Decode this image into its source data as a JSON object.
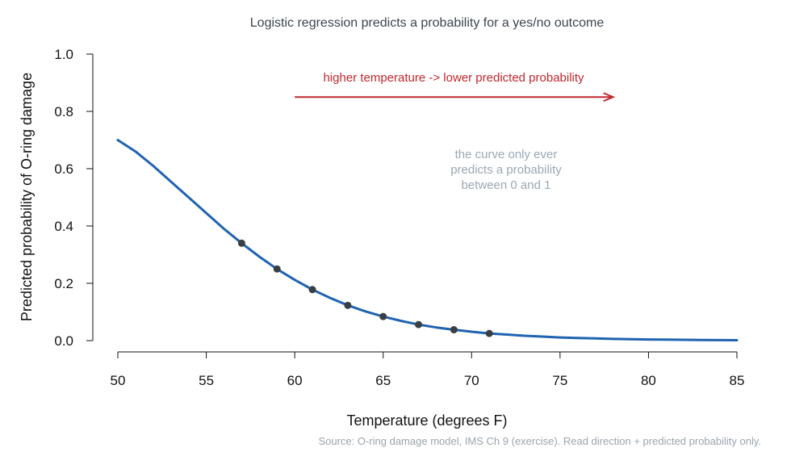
{
  "chart_data": {
    "type": "line",
    "title": "Logistic regression predicts a probability for a yes/no outcome",
    "xlabel": "Temperature (degrees F)",
    "ylabel": "Predicted probability of O-ring damage",
    "xlim": [
      50,
      85
    ],
    "ylim": [
      0,
      1
    ],
    "x_ticks": [
      50,
      55,
      60,
      65,
      70,
      75,
      80,
      85
    ],
    "y_ticks": [
      "0.0",
      "0.2",
      "0.4",
      "0.6",
      "0.8",
      "1.0"
    ],
    "curve": {
      "x": [
        50,
        51,
        52,
        53,
        54,
        55,
        56,
        57,
        58,
        59,
        60,
        61,
        62,
        63,
        64,
        65,
        66,
        67,
        68,
        69,
        70,
        71,
        72,
        73,
        74,
        75,
        76,
        77,
        78,
        79,
        80,
        81,
        82,
        83,
        84,
        85
      ],
      "y": [
        0.7,
        0.66,
        0.61,
        0.555,
        0.5,
        0.445,
        0.39,
        0.34,
        0.293,
        0.25,
        0.212,
        0.178,
        0.149,
        0.123,
        0.102,
        0.084,
        0.069,
        0.056,
        0.046,
        0.038,
        0.031,
        0.025,
        0.021,
        0.017,
        0.014,
        0.011,
        0.009,
        0.0075,
        0.006,
        0.005,
        0.004,
        0.0033,
        0.0027,
        0.0022,
        0.0018,
        0.0015
      ],
      "color": "#1f63b0"
    },
    "points": {
      "x": [
        57,
        59,
        61,
        63,
        65,
        67,
        69,
        71
      ],
      "y": [
        0.34,
        0.25,
        0.178,
        0.123,
        0.084,
        0.056,
        0.038,
        0.025
      ],
      "color": "#3a3f44"
    },
    "annotations": {
      "direction_label": "higher temperature -> lower predicted probability",
      "direction_arrow": {
        "from_x": 60,
        "to_x": 78,
        "y": 0.85
      },
      "direction_color": "#c0282d",
      "bounds_note": [
        "the curve only ever",
        "predicts a probability",
        "between 0 and 1"
      ],
      "bounds_color": "#9aa8b4"
    },
    "grid": false,
    "legend": "none"
  },
  "source": "Source: O-ring damage model, IMS Ch 9 (exercise). Read direction + predicted probability only."
}
